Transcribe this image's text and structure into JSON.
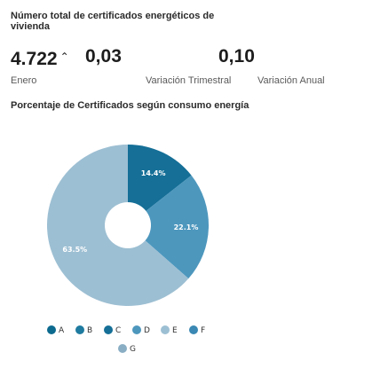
{
  "header": {
    "title": "Número total de certificados energéticos de vivienda"
  },
  "kpis": [
    {
      "value": "4.722",
      "trend": "⌃",
      "label": "Enero"
    },
    {
      "value": "0,03",
      "label": "Variación Trimestral"
    },
    {
      "value": "0,10",
      "label": "Variación Anual"
    }
  ],
  "chart_title": "Porcentaje de Certificados según consumo energía",
  "chart_data": {
    "type": "pie",
    "title": "Porcentaje de Certificados según consumo energía",
    "slices": [
      {
        "name": "A",
        "value": 0,
        "label": "",
        "color": "#0d6a8f"
      },
      {
        "name": "B",
        "value": 0,
        "label": "",
        "color": "#1f7ba0"
      },
      {
        "name": "C",
        "value": 14.4,
        "label": "14.4%",
        "color": "#156f97"
      },
      {
        "name": "D",
        "value": 22.1,
        "label": "22.1%",
        "color": "#4d97bd"
      },
      {
        "name": "E",
        "value": 63.5,
        "label": "63.5%",
        "color": "#9dbfd3"
      },
      {
        "name": "F",
        "value": 0,
        "label": "",
        "color": "#3a88b3"
      },
      {
        "name": "G",
        "value": 0,
        "label": "",
        "color": "#8aaec4"
      }
    ],
    "legend_position": "bottom"
  }
}
